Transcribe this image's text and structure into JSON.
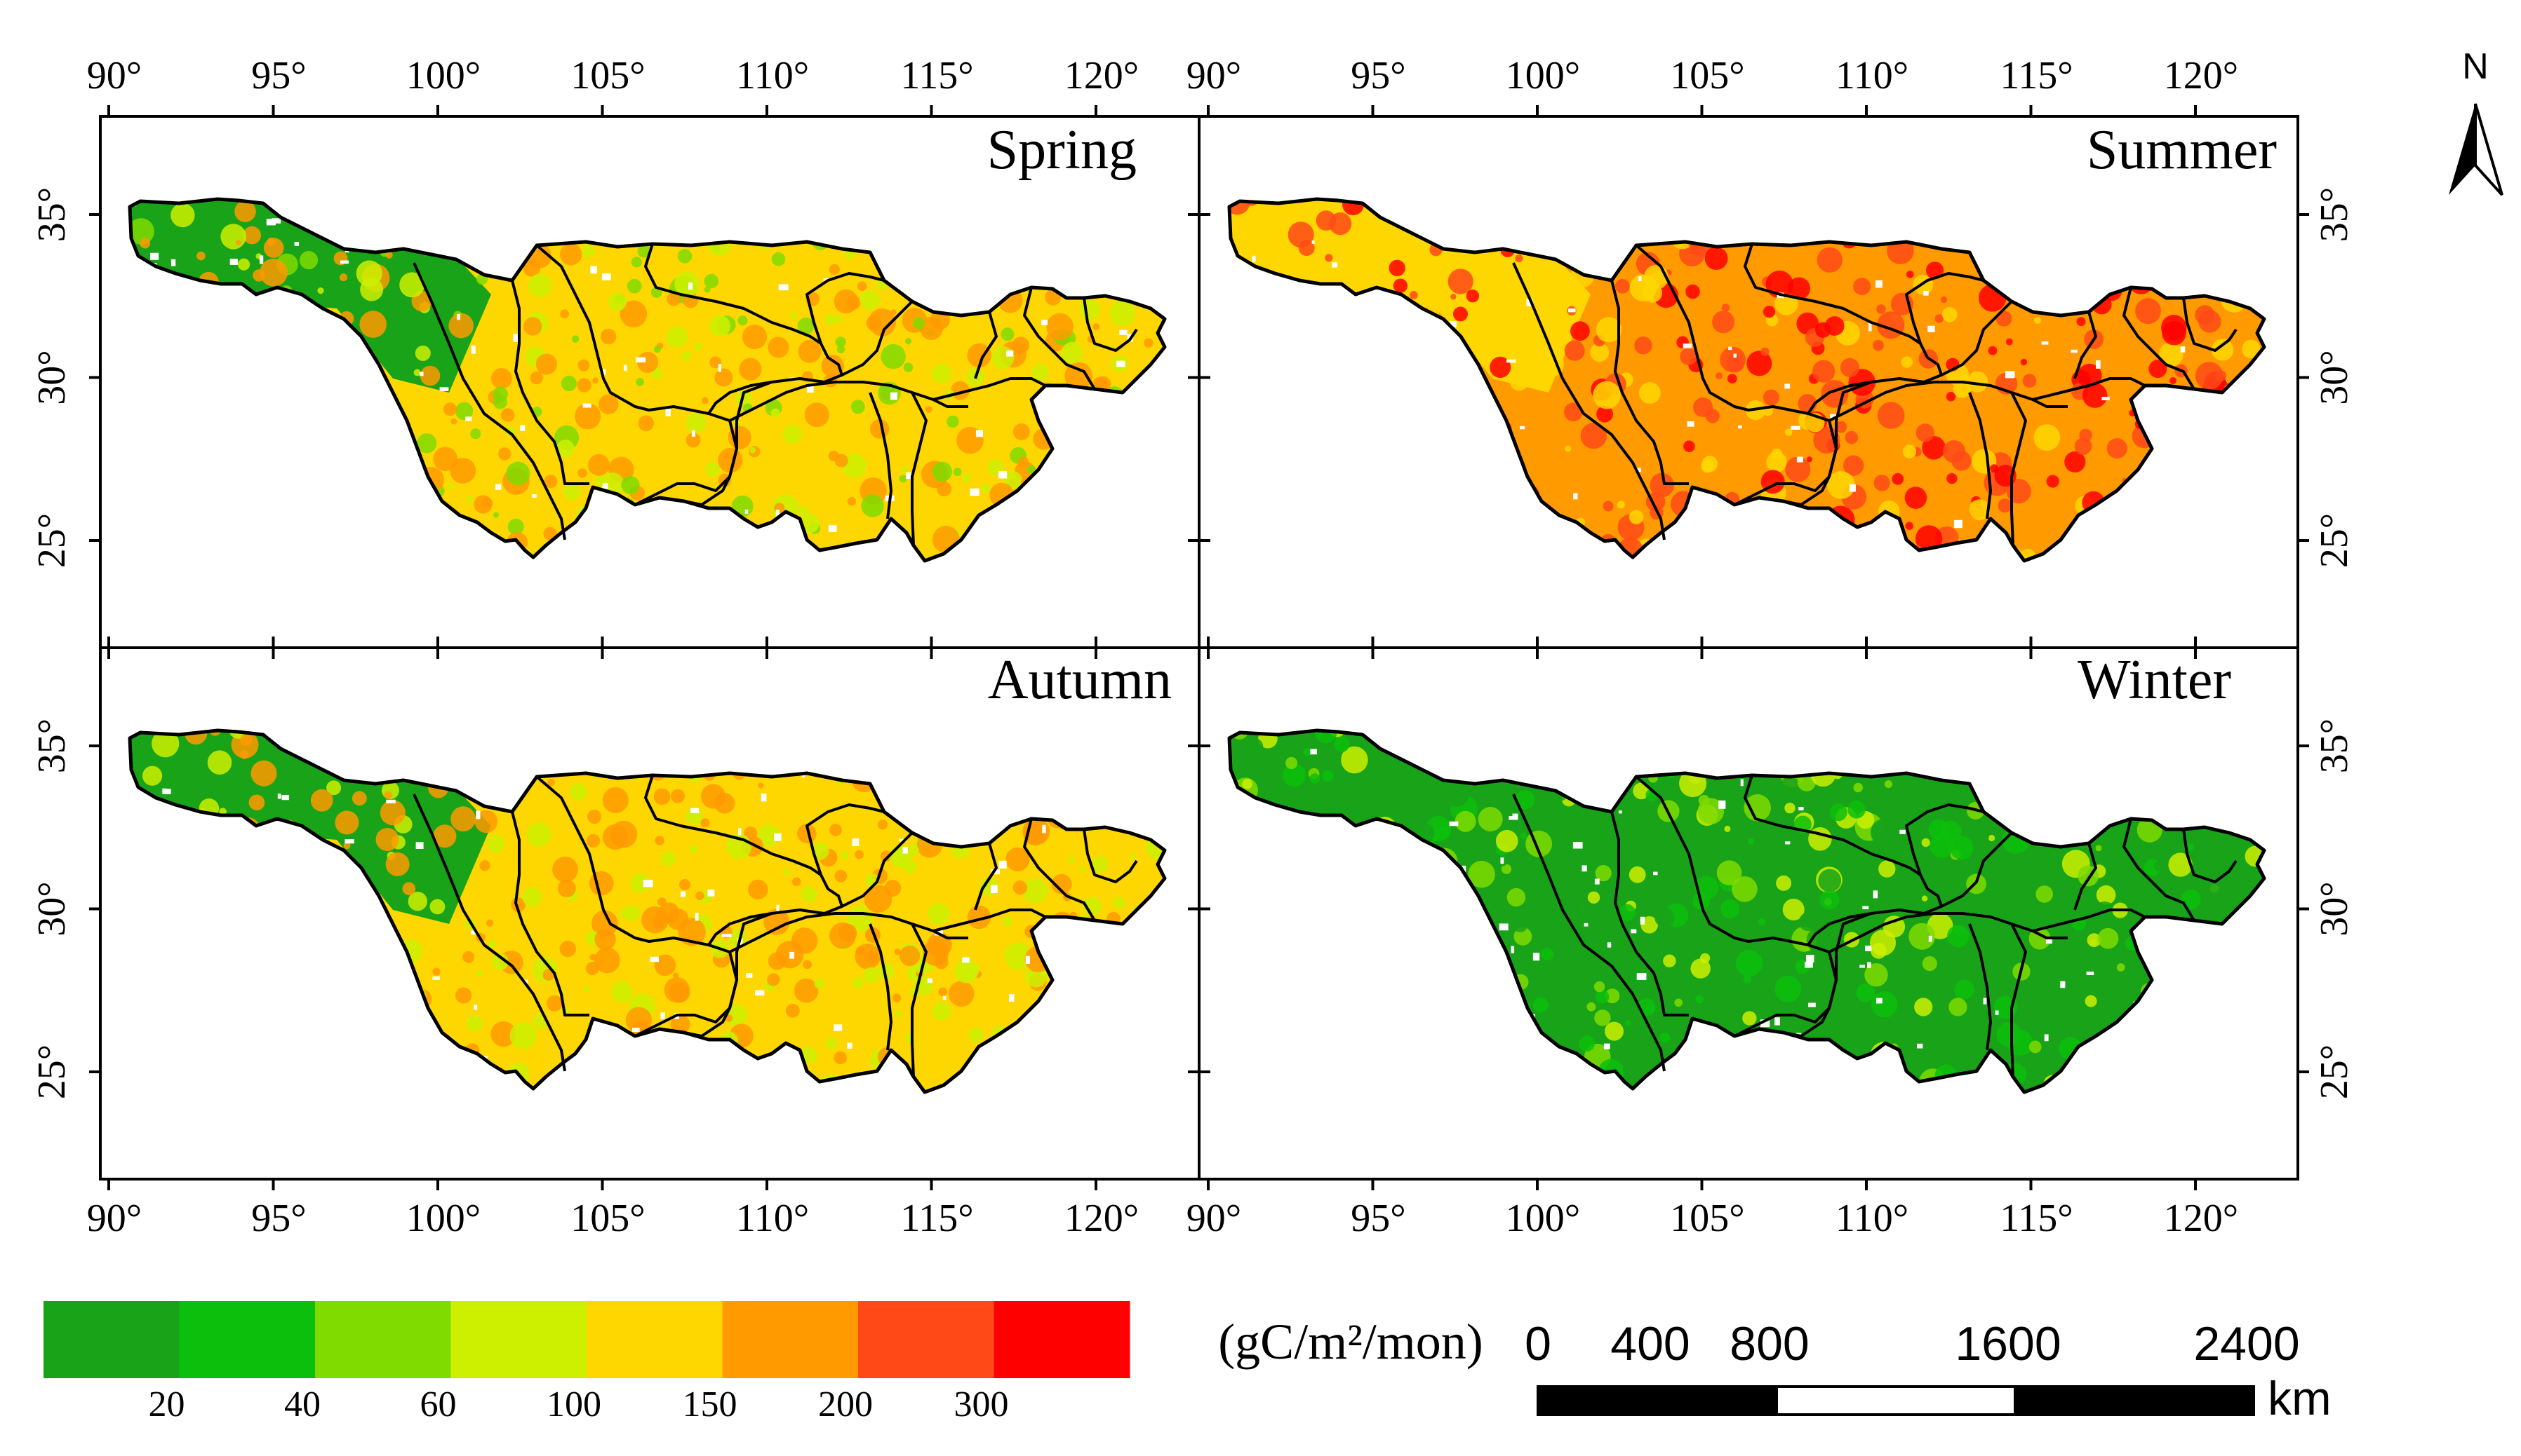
{
  "maps": {
    "longitude_labels": [
      "90°",
      "95°",
      "100°",
      "105°",
      "110°",
      "115°",
      "120°"
    ],
    "latitude_labels": [
      "35°",
      "30°",
      "25°"
    ],
    "panels": [
      {
        "id": "spring",
        "title": "Spring"
      },
      {
        "id": "summer",
        "title": "Summer"
      },
      {
        "id": "autumn",
        "title": "Autumn"
      },
      {
        "id": "winter",
        "title": "Winter"
      }
    ]
  },
  "north_arrow": {
    "label": "N"
  },
  "legend": {
    "unit": "(gC/m²/mon)",
    "colors": [
      "#19a319",
      "#0cbf0c",
      "#7fdb00",
      "#ccf000",
      "#ffd700",
      "#ff9a00",
      "#ff4a17",
      "#ff0000"
    ],
    "tick_labels": [
      "20",
      "40",
      "60",
      "100",
      "150",
      "200",
      "300"
    ]
  },
  "scale_bar": {
    "labels": [
      "0",
      "400",
      "800",
      "1600",
      "2400"
    ],
    "unit": "km"
  },
  "colors": {
    "frame": "#000000",
    "background": "#ffffff"
  }
}
